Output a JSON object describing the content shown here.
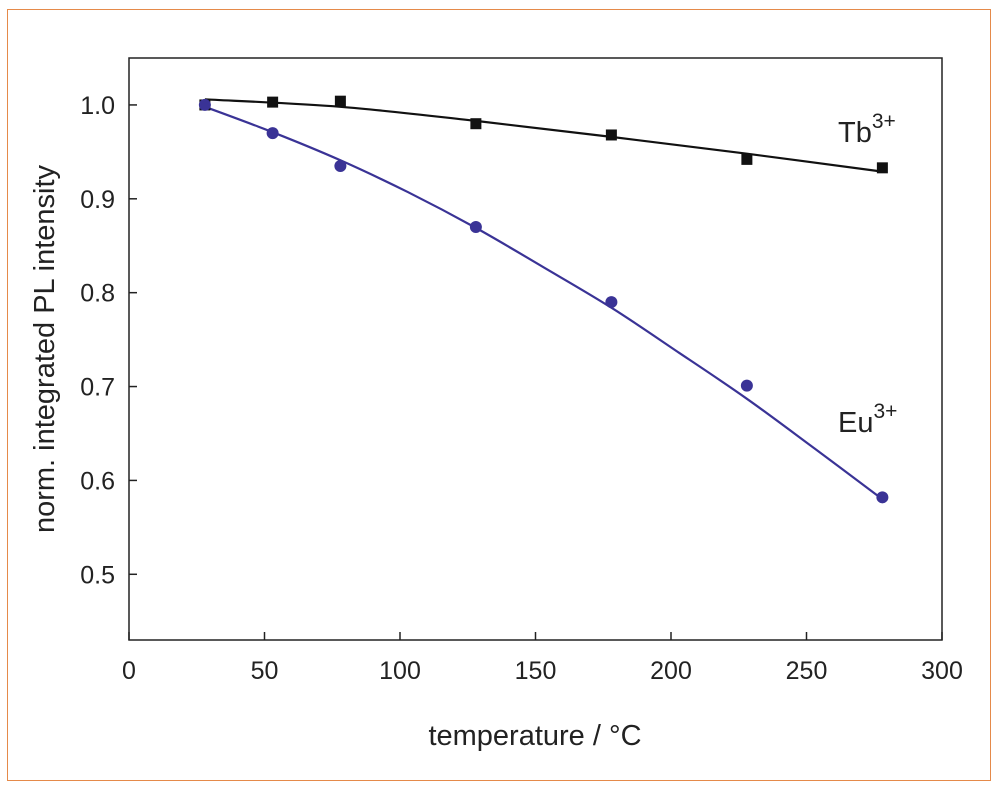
{
  "chart_data": {
    "type": "scatter",
    "xlabel": "temperature / °C",
    "ylabel": "norm. integrated PL intensity",
    "xlim": [
      0,
      300
    ],
    "ylim": [
      0.43,
      1.05
    ],
    "x_ticks": [
      0,
      50,
      100,
      150,
      200,
      250,
      300
    ],
    "y_ticks": [
      0.5,
      0.6,
      0.7,
      0.8,
      0.9,
      1.0
    ],
    "x_tick_labels": [
      "0",
      "50",
      "100",
      "150",
      "200",
      "250",
      "300"
    ],
    "y_tick_labels": [
      "0.5",
      "0.6",
      "0.7",
      "0.8",
      "0.9",
      "1.0"
    ],
    "grid": false,
    "series": [
      {
        "name": "Tb",
        "superscript": "3+",
        "marker": "square",
        "color": "#111111",
        "x": [
          28,
          53,
          78,
          128,
          178,
          228,
          278
        ],
        "y": [
          1.0,
          1.003,
          1.004,
          0.98,
          0.968,
          0.942,
          0.933
        ],
        "fit_x": [
          28,
          78,
          128,
          178,
          228,
          278
        ],
        "fit_y": [
          1.006,
          0.998,
          0.983,
          0.966,
          0.948,
          0.929
        ]
      },
      {
        "name": "Eu",
        "superscript": "3+",
        "marker": "circle",
        "color": "#3a3396",
        "x": [
          28,
          53,
          78,
          128,
          178,
          228,
          278
        ],
        "y": [
          1.0,
          0.97,
          0.935,
          0.87,
          0.79,
          0.701,
          0.582
        ],
        "fit_x": [
          28,
          53,
          78,
          103,
          128,
          153,
          178,
          203,
          228,
          253,
          278
        ],
        "fit_y": [
          0.998,
          0.971,
          0.941,
          0.907,
          0.869,
          0.827,
          0.784,
          0.736,
          0.687,
          0.634,
          0.58
        ]
      }
    ]
  }
}
